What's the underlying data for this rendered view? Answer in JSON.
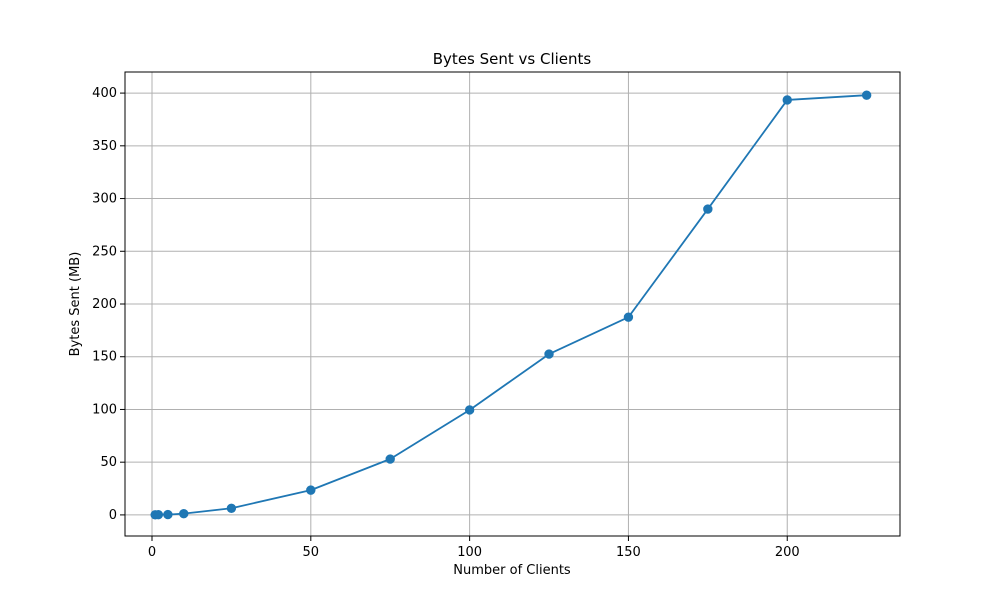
{
  "chart_data": {
    "type": "line",
    "title": "Bytes Sent vs Clients",
    "xlabel": "Number of Clients",
    "ylabel": "Bytes Sent (MB)",
    "xlim": [
      -8.5,
      235.5
    ],
    "ylim": [
      -20,
      420
    ],
    "xticks": [
      0,
      50,
      100,
      150,
      200
    ],
    "yticks": [
      0,
      50,
      100,
      150,
      200,
      250,
      300,
      350,
      400
    ],
    "grid": true,
    "series": [
      {
        "color": "#1f77b4",
        "marker": "circle",
        "x": [
          1,
          2,
          5,
          10,
          25,
          50,
          75,
          100,
          125,
          150,
          175,
          200,
          225
        ],
        "y": [
          0.1,
          0.2,
          0.3,
          1.2,
          6.3,
          23.5,
          53,
          99.5,
          152.5,
          187.5,
          290,
          393.5,
          398
        ]
      }
    ]
  }
}
